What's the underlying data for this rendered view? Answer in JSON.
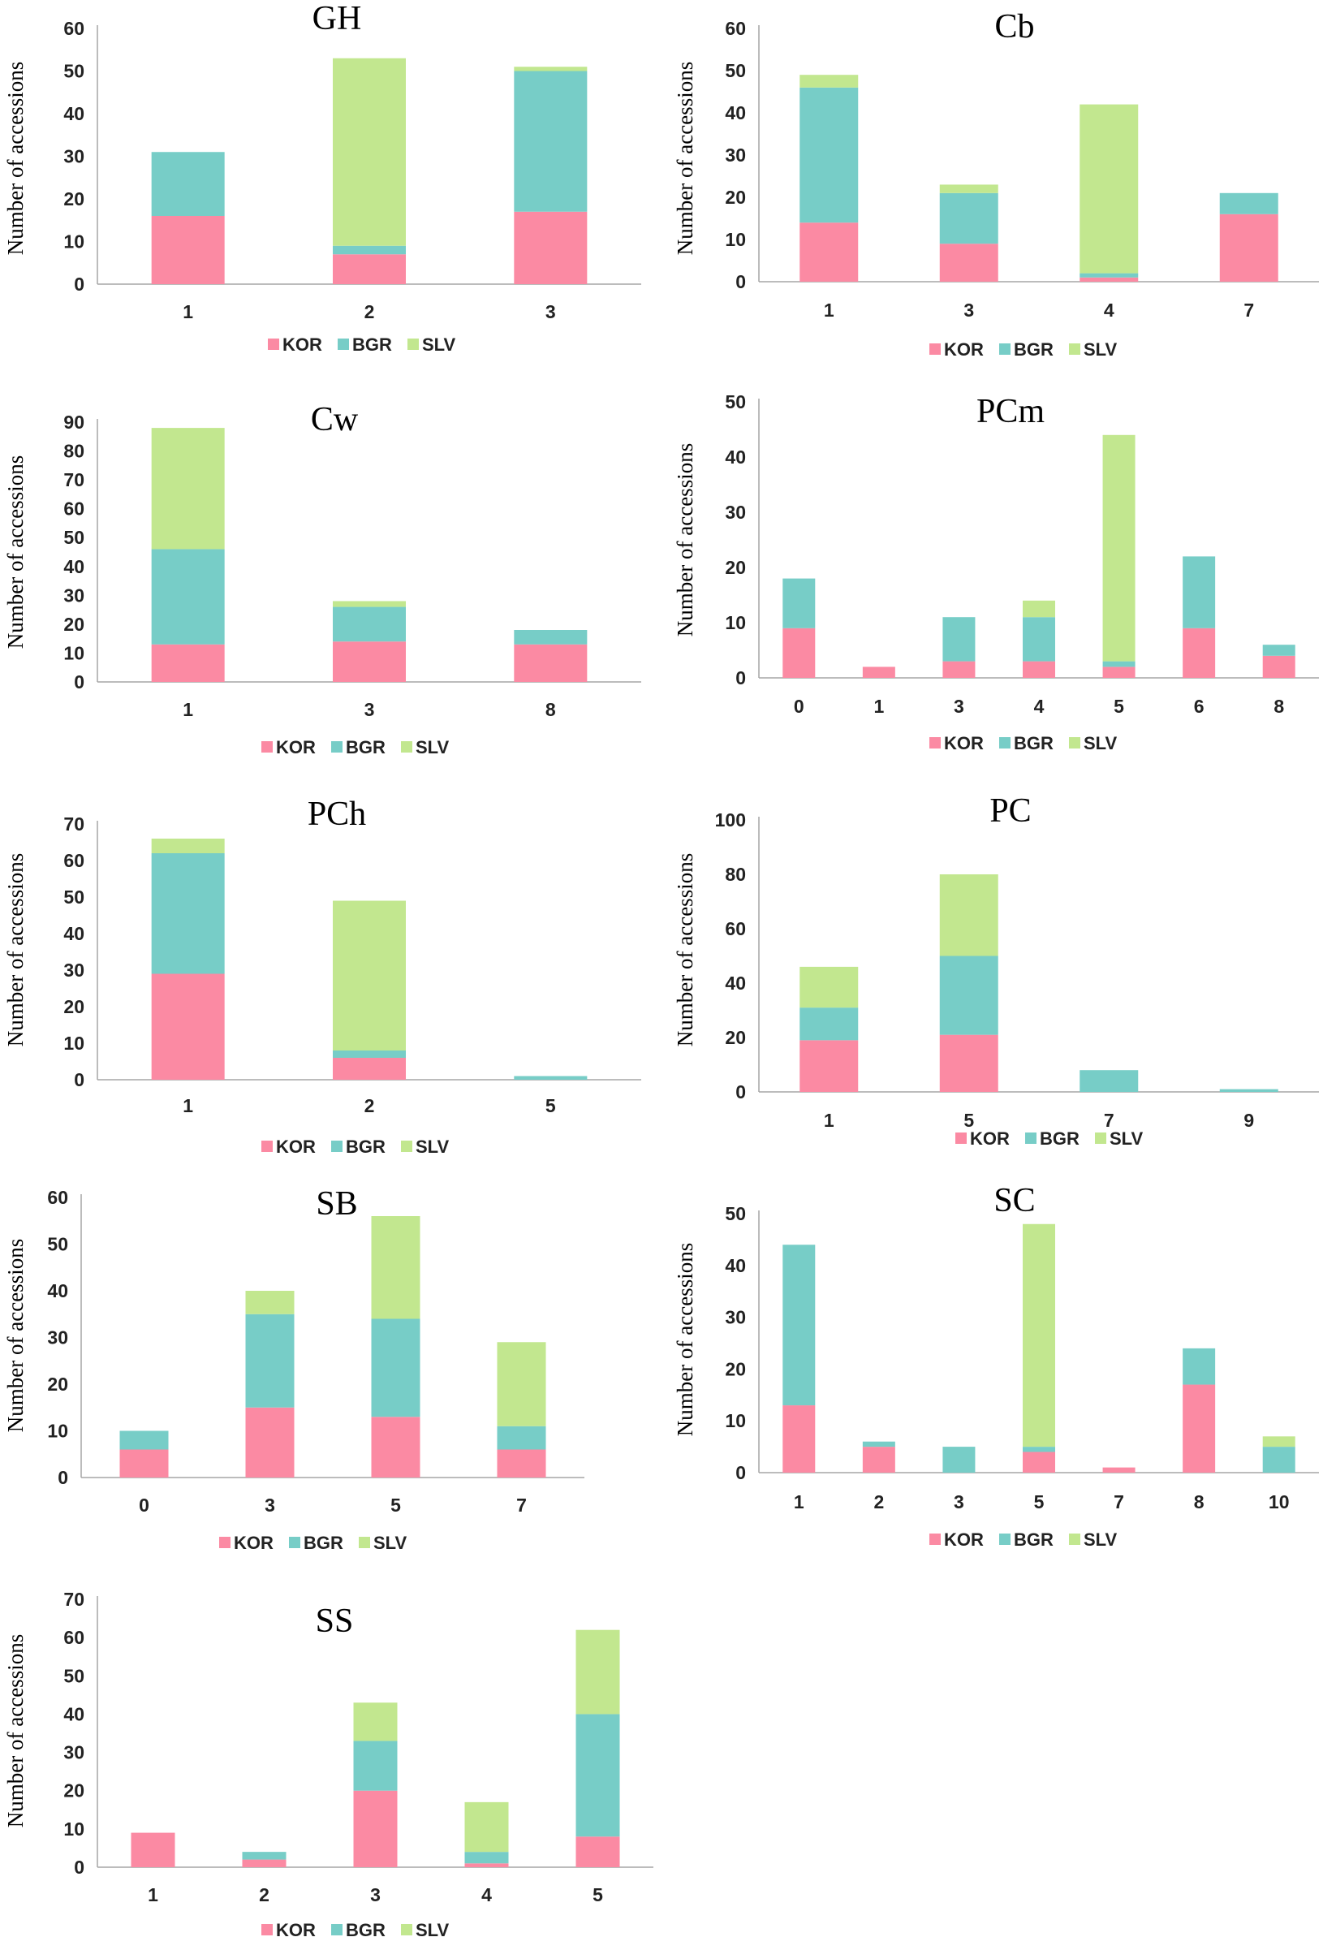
{
  "colors": {
    "KOR": "#fb8aa3",
    "BGR": "#77cdc7",
    "SLV": "#c2e78f"
  },
  "chart_data": [
    {
      "type": "bar",
      "stacked": true,
      "title": "GH",
      "ylabel": "Number of accessions",
      "ylim": [
        0,
        60
      ],
      "yticks": [
        0,
        10,
        20,
        30,
        40,
        50,
        60
      ],
      "categories": [
        "1",
        "2",
        "3"
      ],
      "series": [
        {
          "name": "KOR",
          "values": [
            16,
            7,
            17
          ]
        },
        {
          "name": "BGR",
          "values": [
            15,
            2,
            33
          ]
        },
        {
          "name": "SLV",
          "values": [
            0,
            44,
            1
          ]
        }
      ],
      "legend": "bottom"
    },
    {
      "type": "bar",
      "stacked": true,
      "title": "Cb",
      "ylabel": "Number of accessions",
      "ylim": [
        0,
        60
      ],
      "yticks": [
        0,
        10,
        20,
        30,
        40,
        50,
        60
      ],
      "categories": [
        "1",
        "3",
        "4",
        "7"
      ],
      "series": [
        {
          "name": "KOR",
          "values": [
            14,
            9,
            1,
            16
          ]
        },
        {
          "name": "BGR",
          "values": [
            32,
            12,
            1,
            5
          ]
        },
        {
          "name": "SLV",
          "values": [
            3,
            2,
            40,
            0
          ]
        }
      ],
      "legend": "bottom"
    },
    {
      "type": "bar",
      "stacked": true,
      "title": "Cw",
      "ylabel": "Number of accessions",
      "ylim": [
        0,
        90
      ],
      "yticks": [
        0,
        10,
        20,
        30,
        40,
        50,
        60,
        70,
        80,
        90
      ],
      "categories": [
        "1",
        "3",
        "8"
      ],
      "series": [
        {
          "name": "KOR",
          "values": [
            13,
            14,
            13
          ]
        },
        {
          "name": "BGR",
          "values": [
            33,
            12,
            5
          ]
        },
        {
          "name": "SLV",
          "values": [
            42,
            2,
            0
          ]
        }
      ],
      "legend": "bottom"
    },
    {
      "type": "bar",
      "stacked": true,
      "title": "PCm",
      "ylabel": "Number of accessions",
      "ylim": [
        0,
        50
      ],
      "yticks": [
        0,
        10,
        20,
        30,
        40,
        50
      ],
      "categories": [
        "0",
        "1",
        "3",
        "4",
        "5",
        "6",
        "8"
      ],
      "series": [
        {
          "name": "KOR",
          "values": [
            9,
            2,
            3,
            3,
            2,
            9,
            4
          ]
        },
        {
          "name": "BGR",
          "values": [
            9,
            0,
            8,
            8,
            1,
            13,
            2
          ]
        },
        {
          "name": "SLV",
          "values": [
            0,
            0,
            0,
            3,
            41,
            0,
            0
          ]
        }
      ],
      "legend": "bottom"
    },
    {
      "type": "bar",
      "stacked": true,
      "title": "PCh",
      "ylabel": "Number of accessions",
      "ylim": [
        0,
        70
      ],
      "yticks": [
        0,
        10,
        20,
        30,
        40,
        50,
        60,
        70
      ],
      "categories": [
        "1",
        "2",
        "5"
      ],
      "series": [
        {
          "name": "KOR",
          "values": [
            29,
            6,
            0
          ]
        },
        {
          "name": "BGR",
          "values": [
            33,
            2,
            1
          ]
        },
        {
          "name": "SLV",
          "values": [
            4,
            41,
            0
          ]
        }
      ],
      "legend": "bottom"
    },
    {
      "type": "bar",
      "stacked": true,
      "title": "PC",
      "ylabel": "Number of accessions",
      "ylim": [
        0,
        100
      ],
      "yticks": [
        0,
        20,
        40,
        60,
        80,
        100
      ],
      "categories": [
        "1",
        "5",
        "7",
        "9"
      ],
      "series": [
        {
          "name": "KOR",
          "values": [
            19,
            21,
            0,
            0
          ]
        },
        {
          "name": "BGR",
          "values": [
            12,
            29,
            8,
            1
          ]
        },
        {
          "name": "SLV",
          "values": [
            15,
            30,
            0,
            0
          ]
        }
      ],
      "legend": "bottom"
    },
    {
      "type": "bar",
      "stacked": true,
      "title": "SB",
      "ylabel": "Number of accessions",
      "ylim": [
        0,
        60
      ],
      "yticks": [
        0,
        10,
        20,
        30,
        40,
        50,
        60
      ],
      "categories": [
        "0",
        "3",
        "5",
        "7"
      ],
      "series": [
        {
          "name": "KOR",
          "values": [
            6,
            15,
            13,
            6
          ]
        },
        {
          "name": "BGR",
          "values": [
            4,
            20,
            21,
            5
          ]
        },
        {
          "name": "SLV",
          "values": [
            0,
            5,
            22,
            18
          ]
        }
      ],
      "legend": "bottom"
    },
    {
      "type": "bar",
      "stacked": true,
      "title": "SC",
      "ylabel": "Number of accessions",
      "ylim": [
        0,
        50
      ],
      "yticks": [
        0,
        10,
        20,
        30,
        40,
        50
      ],
      "categories": [
        "1",
        "2",
        "3",
        "5",
        "7",
        "8",
        "10"
      ],
      "series": [
        {
          "name": "KOR",
          "values": [
            13,
            5,
            0,
            4,
            1,
            17,
            0
          ]
        },
        {
          "name": "BGR",
          "values": [
            31,
            1,
            5,
            1,
            0,
            7,
            5
          ]
        },
        {
          "name": "SLV",
          "values": [
            0,
            0,
            0,
            43,
            0,
            0,
            2
          ]
        }
      ],
      "legend": "bottom"
    },
    {
      "type": "bar",
      "stacked": true,
      "title": "SS",
      "ylabel": "Number of accessions",
      "ylim": [
        0,
        70
      ],
      "yticks": [
        0,
        10,
        20,
        30,
        40,
        50,
        60,
        70
      ],
      "categories": [
        "1",
        "2",
        "3",
        "4",
        "5"
      ],
      "series": [
        {
          "name": "KOR",
          "values": [
            9,
            2,
            20,
            1,
            8
          ]
        },
        {
          "name": "BGR",
          "values": [
            0,
            2,
            13,
            3,
            32
          ]
        },
        {
          "name": "SLV",
          "values": [
            0,
            0,
            10,
            13,
            22
          ]
        }
      ],
      "legend": "bottom"
    }
  ]
}
